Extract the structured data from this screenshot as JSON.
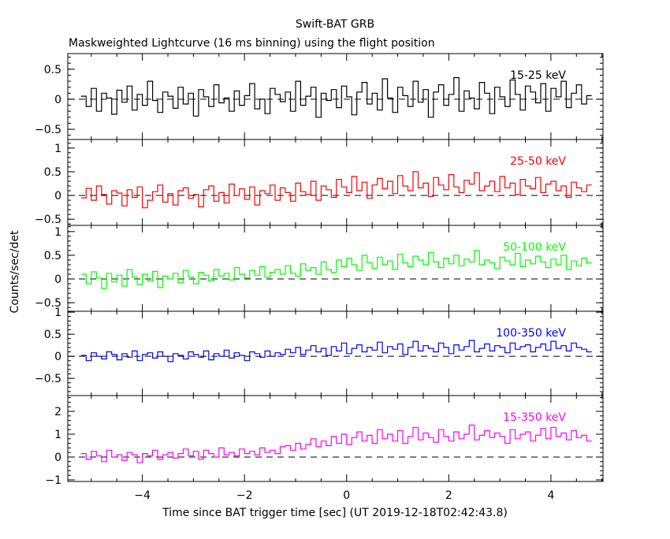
{
  "chart_data": {
    "type": "line",
    "title": "Swift-BAT GRB",
    "subtitle": "Maskweighted Lightcurve (16 ms binning) using the flight position",
    "xlabel": "Time since BAT trigger time [sec] (UT 2019-12-18T02:42:43.8)",
    "ylabel": "Counts/sec/det",
    "xlim": [
      -5.46,
      5.02
    ],
    "xticks": [
      -4,
      -2,
      0,
      2,
      4
    ],
    "x_start": -5.2,
    "x_step": 0.1,
    "series": [
      {
        "name": "15-25 keV",
        "color": "#000000",
        "ylim": [
          -0.67,
          0.76
        ],
        "yticks": [
          "-0.5",
          "0",
          "0.5"
        ],
        "ytick_values": [
          -0.5,
          0,
          0.5
        ],
        "minor_step": 0.1,
        "values": [
          0.05,
          -0.12,
          0.18,
          -0.2,
          0.1,
          0.02,
          -0.25,
          0.15,
          -0.05,
          0.22,
          -0.18,
          0.08,
          -0.1,
          0.3,
          -0.02,
          -0.22,
          0.12,
          0.05,
          -0.15,
          0.2,
          -0.08,
          0.1,
          -0.28,
          0.16,
          0.04,
          -0.12,
          0.24,
          -0.06,
          0.02,
          -0.2,
          0.14,
          -0.1,
          0.06,
          0.26,
          -0.16,
          0.0,
          -0.24,
          0.18,
          0.08,
          -0.04,
          0.12,
          -0.2,
          0.3,
          -0.1,
          0.05,
          0.2,
          -0.3,
          0.1,
          -0.02,
          0.16,
          -0.14,
          0.22,
          0.04,
          -0.26,
          0.12,
          0.28,
          -0.08,
          0.1,
          -0.18,
          0.34,
          0.02,
          -0.22,
          0.2,
          0.06,
          -0.12,
          0.3,
          -0.05,
          0.16,
          -0.3,
          0.12,
          0.24,
          -0.1,
          0.08,
          0.36,
          -0.2,
          0.14,
          0.02,
          -0.16,
          0.28,
          0.1,
          -0.24,
          0.2,
          0.04,
          -0.12,
          0.32,
          0.08,
          -0.18,
          0.22,
          0.12,
          -0.06,
          0.26,
          -0.2,
          0.18,
          0.04,
          0.3,
          -0.14,
          0.1,
          0.24,
          -0.08,
          0.06
        ]
      },
      {
        "name": "25-50 keV",
        "color": "#ff0000",
        "ylim": [
          -0.63,
          1.18
        ],
        "yticks": [
          "-0.5",
          "0",
          "0.5",
          "1"
        ],
        "ytick_values": [
          -0.5,
          0,
          0.5,
          1
        ],
        "minor_step": 0.1,
        "values": [
          -0.05,
          0.15,
          -0.1,
          0.2,
          0.02,
          -0.18,
          0.1,
          0.05,
          -0.22,
          0.12,
          -0.04,
          0.18,
          -0.26,
          -0.1,
          0.08,
          0.22,
          -0.14,
          0.04,
          -0.2,
          0.1,
          0.16,
          -0.06,
          0.02,
          -0.24,
          0.12,
          0.2,
          -0.12,
          0.06,
          -0.16,
          0.24,
          0.0,
          0.14,
          -0.08,
          0.18,
          -0.2,
          0.1,
          0.04,
          0.22,
          -0.1,
          0.16,
          0.06,
          -0.12,
          0.26,
          0.08,
          0.02,
          0.3,
          -0.1,
          0.2,
          0.12,
          -0.04,
          0.34,
          0.18,
          0.06,
          0.4,
          0.1,
          0.28,
          -0.06,
          0.22,
          0.36,
          0.14,
          0.3,
          0.04,
          0.42,
          0.2,
          0.1,
          0.5,
          0.16,
          0.26,
          -0.02,
          0.38,
          0.22,
          0.12,
          0.44,
          0.18,
          0.06,
          0.32,
          0.24,
          0.48,
          0.1,
          0.2,
          0.3,
          0.08,
          0.4,
          0.16,
          0.26,
          0.02,
          0.34,
          0.2,
          0.14,
          0.38,
          0.06,
          0.24,
          0.3,
          0.1,
          0.2,
          -0.04,
          0.28,
          0.16,
          0.08,
          0.22
        ]
      },
      {
        "name": "50-100 keV",
        "color": "#00ff00",
        "ylim": [
          -0.68,
          1.13
        ],
        "yticks": [
          "-0.5",
          "0",
          "0.5",
          "1"
        ],
        "ytick_values": [
          -0.5,
          0,
          0.5,
          1
        ],
        "minor_step": 0.1,
        "values": [
          0.1,
          -0.1,
          0.15,
          0.02,
          -0.2,
          0.12,
          -0.06,
          0.08,
          -0.15,
          0.2,
          0.04,
          -0.12,
          0.1,
          -0.04,
          0.16,
          -0.18,
          0.06,
          0.0,
          0.12,
          -0.08,
          0.18,
          0.04,
          -0.1,
          0.14,
          0.08,
          -0.04,
          0.2,
          0.06,
          0.12,
          -0.02,
          0.24,
          0.1,
          0.02,
          0.18,
          0.08,
          0.26,
          0.04,
          0.14,
          0.2,
          0.1,
          0.28,
          0.12,
          0.06,
          0.32,
          0.18,
          0.24,
          0.1,
          0.36,
          0.2,
          0.14,
          0.4,
          0.26,
          0.44,
          0.3,
          0.18,
          0.5,
          0.34,
          0.22,
          0.46,
          0.3,
          0.38,
          0.2,
          0.52,
          0.34,
          0.26,
          0.48,
          0.4,
          0.3,
          0.56,
          0.36,
          0.24,
          0.44,
          0.32,
          0.5,
          0.28,
          0.42,
          0.36,
          0.6,
          0.3,
          0.4,
          0.34,
          0.22,
          0.46,
          0.38,
          0.3,
          0.54,
          0.26,
          0.4,
          0.32,
          0.48,
          0.36,
          0.24,
          0.42,
          0.3,
          0.5,
          0.2,
          0.38,
          0.28,
          0.44,
          0.34
        ]
      },
      {
        "name": "100-350 keV",
        "color": "#0000ff",
        "ylim": [
          -0.89,
          1.02
        ],
        "yticks": [
          "-0.5",
          "0",
          "0.5",
          "1"
        ],
        "ytick_values": [
          -0.5,
          0,
          0.5,
          1
        ],
        "minor_step": 0.1,
        "values": [
          0.02,
          -0.1,
          0.08,
          0.0,
          -0.06,
          0.1,
          0.04,
          -0.08,
          0.06,
          -0.02,
          0.12,
          -0.1,
          0.04,
          0.08,
          -0.04,
          0.1,
          0.0,
          -0.12,
          0.06,
          0.02,
          -0.06,
          0.1,
          0.04,
          -0.02,
          0.12,
          -0.08,
          0.06,
          0.0,
          0.14,
          -0.04,
          0.08,
          0.02,
          -0.1,
          0.1,
          0.06,
          -0.02,
          0.12,
          0.0,
          0.08,
          0.04,
          0.16,
          0.08,
          0.2,
          0.04,
          0.14,
          0.24,
          0.1,
          0.18,
          0.02,
          0.22,
          0.12,
          0.3,
          0.06,
          0.18,
          0.26,
          0.1,
          0.2,
          0.14,
          0.32,
          0.08,
          0.22,
          0.16,
          0.28,
          0.04,
          0.2,
          0.34,
          0.12,
          0.24,
          0.18,
          0.1,
          0.3,
          0.2,
          0.06,
          0.26,
          0.14,
          0.22,
          0.36,
          0.1,
          0.18,
          0.28,
          0.12,
          0.24,
          0.2,
          0.08,
          0.3,
          0.16,
          0.22,
          0.26,
          0.1,
          0.2,
          0.28,
          0.14,
          0.34,
          0.18,
          0.24,
          0.12,
          0.3,
          0.2,
          0.16,
          0.1
        ]
      },
      {
        "name": "15-350 keV",
        "color": "#ff00ff",
        "ylim": [
          -1.07,
          2.69
        ],
        "yticks": [
          "-1",
          "0",
          "1",
          "2"
        ],
        "ytick_values": [
          -1,
          0,
          1,
          2
        ],
        "minor_step": 0.2,
        "values": [
          0.15,
          -0.1,
          0.25,
          0.05,
          -0.2,
          0.3,
          0.0,
          0.1,
          -0.15,
          0.2,
          0.1,
          -0.25,
          0.15,
          0.05,
          0.3,
          -0.1,
          0.1,
          0.2,
          -0.05,
          0.15,
          0.35,
          0.05,
          0.25,
          -0.1,
          0.3,
          0.15,
          0.0,
          0.4,
          0.1,
          0.2,
          0.05,
          0.35,
          0.15,
          0.25,
          0.1,
          0.4,
          0.2,
          0.3,
          0.15,
          0.45,
          0.5,
          0.3,
          0.6,
          0.35,
          0.55,
          0.8,
          0.45,
          0.7,
          0.5,
          0.9,
          0.6,
          1.0,
          0.55,
          0.85,
          1.1,
          0.7,
          0.95,
          0.6,
          1.2,
          0.8,
          1.0,
          0.7,
          1.15,
          0.6,
          0.9,
          1.3,
          0.75,
          1.05,
          0.85,
          0.65,
          1.2,
          0.9,
          0.7,
          1.1,
          0.8,
          1.0,
          1.4,
          0.75,
          0.95,
          1.15,
          0.85,
          1.05,
          0.9,
          0.6,
          1.2,
          0.8,
          1.0,
          1.1,
          0.7,
          0.95,
          1.25,
          0.8,
          1.3,
          0.9,
          1.05,
          0.75,
          1.15,
          0.85,
          0.95,
          0.7
        ]
      }
    ],
    "legend": "inside each panel, top-right",
    "grid": false
  }
}
